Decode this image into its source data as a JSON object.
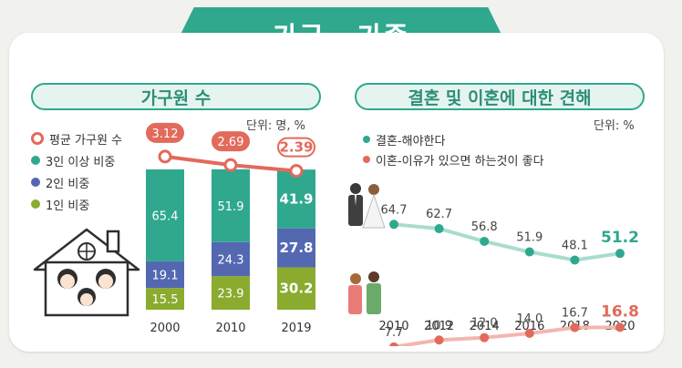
{
  "header": {
    "title": "가구 · 가족"
  },
  "left_panel": {
    "title": "가구원 수",
    "unit": "단위: 명, %",
    "legend": [
      {
        "label": "평균 가구원 수",
        "color": "#e26a5c",
        "marker": "ring"
      },
      {
        "label": "3인 이상 비중",
        "color": "#2fa88e",
        "marker": "dot"
      },
      {
        "label": "2인 비중",
        "color": "#5468b2",
        "marker": "dot"
      },
      {
        "label": "1인 비중",
        "color": "#8aab2e",
        "marker": "dot"
      }
    ]
  },
  "right_panel": {
    "title": "결혼 및 이혼에 대한 견해",
    "unit": "단위: %",
    "legend": [
      {
        "label": "결혼-해야한다",
        "color": "#2fa88e"
      },
      {
        "label": "이혼-이유가 있으면 하는것이 좋다",
        "color": "#e26a5c"
      }
    ]
  },
  "chart_data": [
    {
      "type": "bar",
      "stacked": true,
      "categories": [
        "2000",
        "2010",
        "2019"
      ],
      "series": [
        {
          "name": "1인 비중",
          "values": [
            15.5,
            23.9,
            30.2
          ],
          "color": "#8aab2e"
        },
        {
          "name": "2인 비중",
          "values": [
            19.1,
            24.3,
            27.8
          ],
          "color": "#5468b2"
        },
        {
          "name": "3인 이상 비중",
          "values": [
            65.4,
            51.9,
            41.9
          ],
          "color": "#2fa88e"
        }
      ],
      "line": {
        "name": "평균 가구원 수",
        "values": [
          3.12,
          2.69,
          2.39
        ],
        "color": "#e26a5c"
      },
      "highlight_last": true
    },
    {
      "type": "line",
      "x": [
        "2010",
        "2012",
        "2014",
        "2016",
        "2018",
        "2020"
      ],
      "series": [
        {
          "name": "결혼-해야한다",
          "values": [
            64.7,
            62.7,
            56.8,
            51.9,
            48.1,
            51.2
          ],
          "color": "#2fa88e"
        },
        {
          "name": "이혼-이유가 있으면 하는것이 좋다",
          "values": [
            7.7,
            10.9,
            12.0,
            14.0,
            16.7,
            16.8
          ],
          "color": "#e26a5c"
        }
      ],
      "highlight_last": true
    }
  ]
}
